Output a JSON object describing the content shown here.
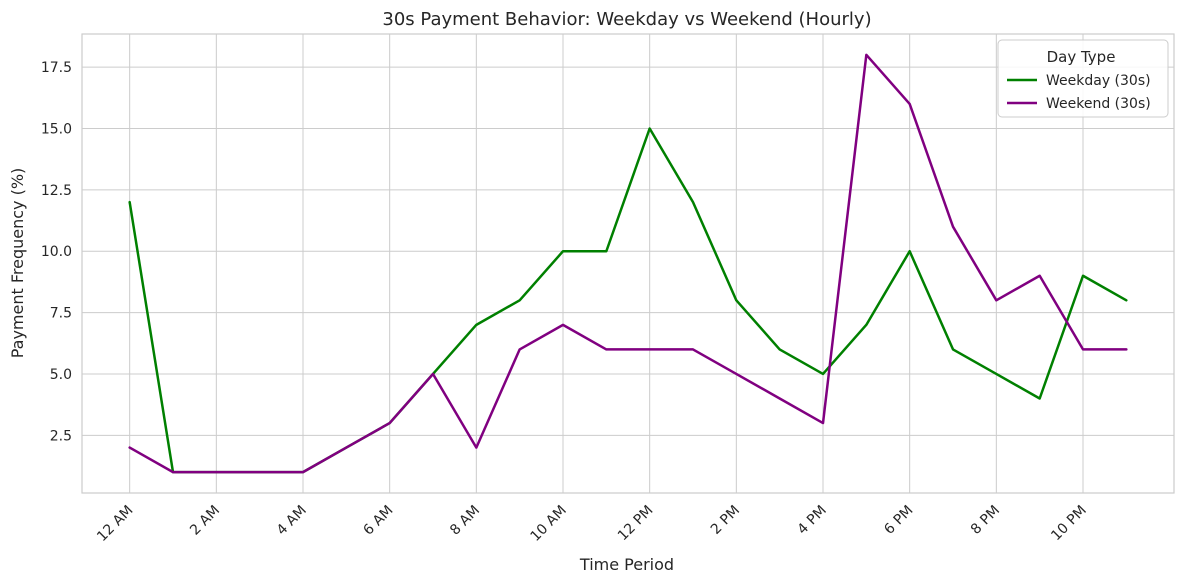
{
  "chart_data": {
    "type": "line",
    "title": "30s Payment Behavior: Weekday vs Weekend (Hourly)",
    "xlabel": "Time Period",
    "ylabel": "Payment Frequency (%)",
    "x": [
      0,
      1,
      2,
      3,
      4,
      5,
      6,
      7,
      8,
      9,
      10,
      11,
      12,
      13,
      14,
      15,
      16,
      17,
      18,
      19,
      20,
      21,
      22,
      23
    ],
    "x_ticks": [
      0,
      2,
      4,
      6,
      8,
      10,
      12,
      14,
      16,
      18,
      20,
      22
    ],
    "x_tick_labels": [
      "12 AM",
      "2 AM",
      "4 AM",
      "6 AM",
      "8 AM",
      "10 AM",
      "12 PM",
      "2 PM",
      "4 PM",
      "6 PM",
      "8 PM",
      "10 PM"
    ],
    "xlim": [
      -1.1,
      24.1
    ],
    "y_ticks": [
      2.5,
      5.0,
      7.5,
      10.0,
      12.5,
      15.0,
      17.5
    ],
    "y_tick_labels": [
      "2.5",
      "5.0",
      "7.5",
      "10.0",
      "12.5",
      "15.0",
      "17.5"
    ],
    "ylim": [
      0.15,
      18.85
    ],
    "grid": true,
    "legend_position": "top-right",
    "legend_title": "Day Type",
    "series": [
      {
        "name": "Weekday (30s)",
        "color": "#008000",
        "values": [
          12,
          1,
          1,
          1,
          1,
          2,
          3,
          5,
          7,
          8,
          10,
          10,
          15,
          12,
          8,
          6,
          5,
          7,
          10,
          6,
          5,
          4,
          9,
          8
        ]
      },
      {
        "name": "Weekend (30s)",
        "color": "#800080",
        "values": [
          2,
          1,
          1,
          1,
          1,
          2,
          3,
          5,
          2,
          6,
          7,
          6,
          6,
          6,
          5,
          4,
          3,
          18,
          16,
          11,
          8,
          9,
          6,
          6
        ]
      }
    ]
  }
}
